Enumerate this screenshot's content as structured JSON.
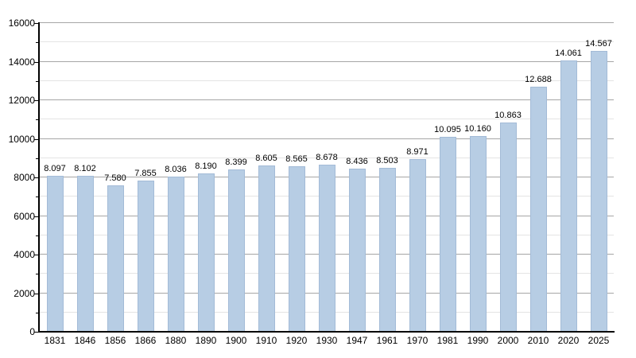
{
  "chart_data": {
    "type": "bar",
    "title": "",
    "xlabel": "",
    "ylabel": "",
    "categories": [
      "1831",
      "1846",
      "1856",
      "1866",
      "1880",
      "1890",
      "1900",
      "1910",
      "1920",
      "1930",
      "1947",
      "1961",
      "1970",
      "1981",
      "1990",
      "2000",
      "2010",
      "2020",
      "2025"
    ],
    "values": [
      8097,
      8102,
      7580,
      7855,
      8036,
      8190,
      8399,
      8605,
      8565,
      8678,
      8436,
      8503,
      8971,
      10095,
      10160,
      10863,
      12688,
      14061,
      14567
    ],
    "value_labels": [
      "8.097",
      "8.102",
      "7.580",
      "7.855",
      "8.036",
      "8.190",
      "8.399",
      "8.605",
      "8.565",
      "8.678",
      "8.436",
      "8.503",
      "8.971",
      "10.095",
      "10.160",
      "10.863",
      "12.688",
      "14.061",
      "14.567"
    ],
    "ylim": [
      0,
      16000
    ],
    "y_major_step": 2000,
    "y_minor_step": 1000,
    "y_tick_labels": [
      "0",
      "2000",
      "4000",
      "6000",
      "8000",
      "10000",
      "12000",
      "14000",
      "16000"
    ],
    "grid": true,
    "legend": null,
    "colors": {
      "bar_fill": "#b7cde4",
      "bar_border": "#a3bbd7",
      "grid_major": "#a6a6a6",
      "grid_minor": "#e4e4e4",
      "axis": "#000000",
      "text": "#000000",
      "background": "#ffffff"
    }
  }
}
